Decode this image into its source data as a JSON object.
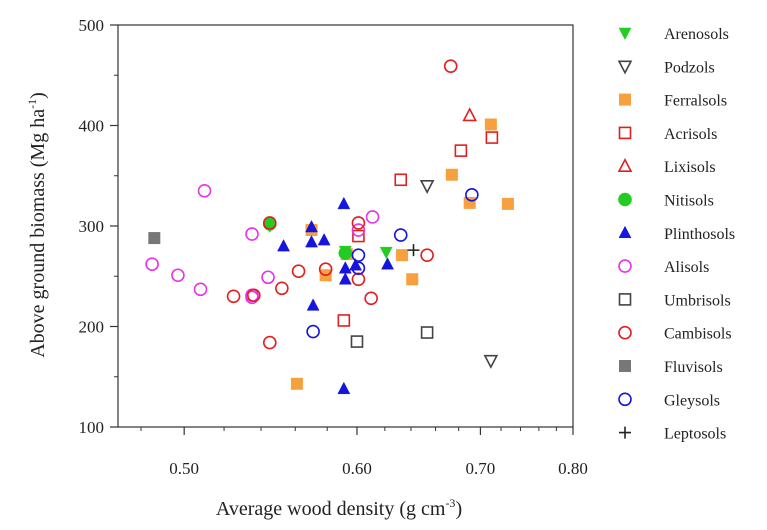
{
  "chart_data": {
    "type": "scatter",
    "xlabel": "Average wood density (g cm",
    "xlabel_sup": "-3",
    "xlabel_end": ")",
    "ylabel": "Above ground biomass (Mg ha",
    "ylabel_sup": "-1",
    "ylabel_end": ")",
    "x_scale": "reciprocal",
    "xlim": [
      0.47,
      0.8
    ],
    "ylim": [
      100,
      500
    ],
    "x_ticks": [
      {
        "value": 0.5,
        "label": "0.50"
      },
      {
        "value": 0.6,
        "label": "0.60"
      },
      {
        "value": 0.7,
        "label": "0.70"
      },
      {
        "value": 0.8,
        "label": "0.80"
      }
    ],
    "y_ticks": [
      {
        "value": 100,
        "label": "100"
      },
      {
        "value": 200,
        "label": "200"
      },
      {
        "value": 300,
        "label": "300"
      },
      {
        "value": 400,
        "label": "400"
      },
      {
        "value": 500,
        "label": "500"
      }
    ],
    "legend_position": "right",
    "grid": false,
    "series": [
      {
        "name": "Arenosols",
        "marker": "triangle-down",
        "filled": true,
        "color": "#22cc22",
        "points": [
          [
            0.545,
            300
          ],
          [
            0.621,
            274
          ],
          [
            0.592,
            275
          ]
        ]
      },
      {
        "name": "Podzols",
        "marker": "triangle-down",
        "filled": false,
        "color": "#444444",
        "points": [
          [
            0.653,
            340
          ],
          [
            0.71,
            166
          ]
        ]
      },
      {
        "name": "Ferralsols",
        "marker": "square",
        "filled": true,
        "color": "#f7a040",
        "points": [
          [
            0.71,
            401
          ],
          [
            0.69,
            323
          ],
          [
            0.674,
            351
          ],
          [
            0.727,
            322
          ],
          [
            0.57,
            296
          ],
          [
            0.633,
            271
          ],
          [
            0.593,
            272
          ],
          [
            0.641,
            247
          ],
          [
            0.579,
            251
          ],
          [
            0.561,
            143
          ]
        ]
      },
      {
        "name": "Acrisols",
        "marker": "square",
        "filled": false,
        "color": "#e02020",
        "points": [
          [
            0.682,
            375
          ],
          [
            0.711,
            388
          ],
          [
            0.632,
            346
          ],
          [
            0.601,
            290
          ],
          [
            0.591,
            206
          ]
        ]
      },
      {
        "name": "Lixisols",
        "marker": "triangle-up",
        "filled": false,
        "color": "#e02020",
        "points": [
          [
            0.69,
            410
          ]
        ]
      },
      {
        "name": "Nitisols",
        "marker": "circle",
        "filled": true,
        "color": "#22cc22",
        "points": [
          [
            0.545,
            302
          ],
          [
            0.592,
            273
          ]
        ]
      },
      {
        "name": "Plinthosols",
        "marker": "triangle-up",
        "filled": true,
        "color": "#1515dd",
        "points": [
          [
            0.591,
            322
          ],
          [
            0.57,
            299
          ],
          [
            0.57,
            284
          ],
          [
            0.578,
            286
          ],
          [
            0.553,
            280
          ],
          [
            0.592,
            258
          ],
          [
            0.592,
            247
          ],
          [
            0.599,
            261
          ],
          [
            0.622,
            262
          ],
          [
            0.571,
            221
          ],
          [
            0.591,
            138
          ]
        ]
      },
      {
        "name": "Alisols",
        "marker": "circle",
        "filled": false,
        "color": "#e833e8",
        "points": [
          [
            0.51,
            335
          ],
          [
            0.485,
            262
          ],
          [
            0.497,
            251
          ],
          [
            0.508,
            237
          ],
          [
            0.535,
            231
          ],
          [
            0.535,
            229
          ],
          [
            0.544,
            249
          ],
          [
            0.535,
            292
          ],
          [
            0.611,
            309
          ],
          [
            0.601,
            296
          ]
        ]
      },
      {
        "name": "Umbrisols",
        "marker": "square",
        "filled": false,
        "color": "#444444",
        "points": [
          [
            0.6,
            185
          ],
          [
            0.653,
            194
          ]
        ]
      },
      {
        "name": "Cambisols",
        "marker": "circle",
        "filled": false,
        "color": "#e02020",
        "points": [
          [
            0.673,
            459
          ],
          [
            0.545,
            303
          ],
          [
            0.601,
            303
          ],
          [
            0.601,
            247
          ],
          [
            0.579,
            257
          ],
          [
            0.562,
            255
          ],
          [
            0.552,
            238
          ],
          [
            0.525,
            230
          ],
          [
            0.536,
            231
          ],
          [
            0.61,
            228
          ],
          [
            0.653,
            271
          ],
          [
            0.545,
            184
          ]
        ]
      },
      {
        "name": "Fluvisols",
        "marker": "square",
        "filled": true,
        "color": "#777777",
        "points": [
          [
            0.486,
            288
          ]
        ]
      },
      {
        "name": "Gleysols",
        "marker": "circle",
        "filled": false,
        "color": "#1515dd",
        "points": [
          [
            0.692,
            331
          ],
          [
            0.632,
            291
          ],
          [
            0.601,
            271
          ],
          [
            0.601,
            258
          ],
          [
            0.571,
            195
          ]
        ]
      },
      {
        "name": "Leptosols",
        "marker": "plus",
        "filled": false,
        "color": "#222222",
        "points": [
          [
            0.642,
            276
          ]
        ]
      }
    ]
  }
}
